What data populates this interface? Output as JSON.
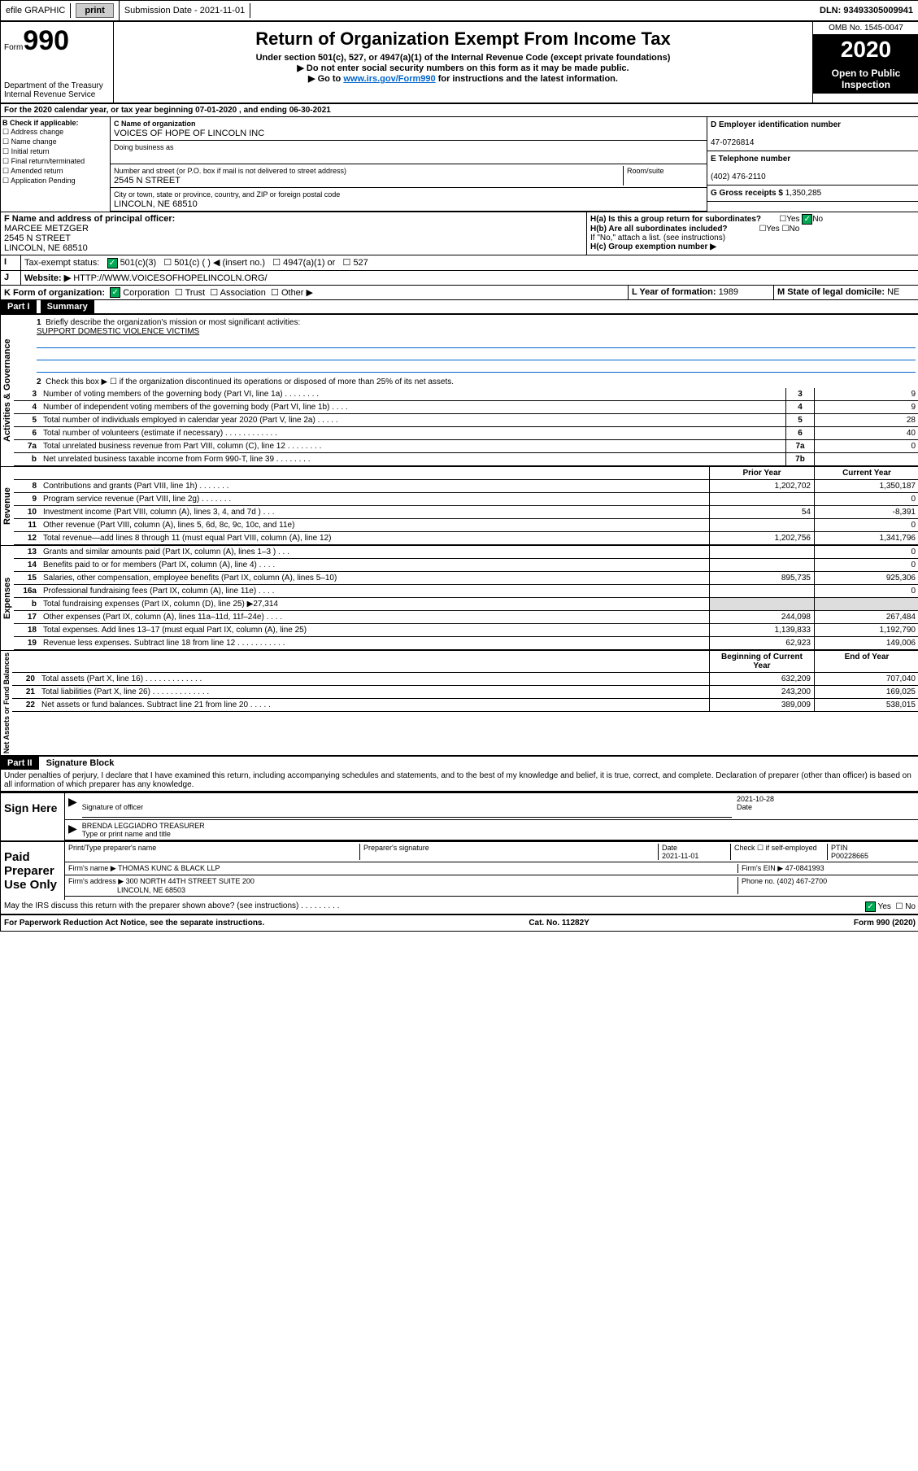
{
  "topbar": {
    "efile": "efile GRAPHIC",
    "print": "print",
    "subdate_label": "Submission Date - ",
    "subdate": "2021-11-01",
    "dln": "DLN: 93493305009941"
  },
  "header": {
    "form": "Form",
    "form_num": "990",
    "dept": "Department of the Treasury\nInternal Revenue Service",
    "title": "Return of Organization Exempt From Income Tax",
    "sub1": "Under section 501(c), 527, or 4947(a)(1) of the Internal Revenue Code (except private foundations)",
    "sub2": "▶ Do not enter social security numbers on this form as it may be made public.",
    "sub3a": "▶ Go to ",
    "sub3_link": "www.irs.gov/Form990",
    "sub3b": " for instructions and the latest information.",
    "omb": "OMB No. 1545-0047",
    "year": "2020",
    "open": "Open to Public Inspection"
  },
  "lineA": "For the 2020 calendar year, or tax year beginning 07-01-2020    , and ending 06-30-2021",
  "sectionB": {
    "label": "B Check if applicable:",
    "items": [
      "Address change",
      "Name change",
      "Initial return",
      "Final return/terminated",
      "Amended return",
      "Application Pending"
    ],
    "c_label": "C Name of organization",
    "org_name": "VOICES OF HOPE OF LINCOLN INC",
    "dba_label": "Doing business as",
    "street_label": "Number and street (or P.O. box if mail is not delivered to street address)",
    "room_label": "Room/suite",
    "street": "2545 N STREET",
    "city_label": "City or town, state or province, country, and ZIP or foreign postal code",
    "city": "LINCOLN, NE  68510",
    "d_label": "D Employer identification number",
    "ein": "47-0726814",
    "e_label": "E Telephone number",
    "phone": "(402) 476-2110",
    "g_label": "G Gross receipts $ ",
    "gross": "1,350,285"
  },
  "sectionF": {
    "f_label": "F Name and address of principal officer:",
    "officer": "MARCEE METZGER",
    "addr1": "2545 N STREET",
    "addr2": "LINCOLN, NE   68510",
    "ha_label": "H(a)  Is this a group return for subordinates?",
    "hb_label": "H(b)  Are all subordinates included?",
    "hb_note": "If \"No,\" attach a list. (see instructions)",
    "hc_label": "H(c)  Group exemption number ▶",
    "yes": "Yes",
    "no": "No"
  },
  "sectionI": {
    "i_label": "Tax-exempt status:",
    "opts": [
      "501(c)(3)",
      "501(c) (   ) ◀ (insert no.)",
      "4947(a)(1) or",
      "527"
    ]
  },
  "sectionJ": {
    "label": "Website: ▶",
    "url": "  HTTP://WWW.VOICESOFHOPELINCOLN.ORG/"
  },
  "sectionK": {
    "label": "K Form of organization:",
    "opts": [
      "Corporation",
      "Trust",
      "Association",
      "Other ▶"
    ],
    "l_label": "L Year of formation: ",
    "l_val": "1989",
    "m_label": "M State of legal domicile: ",
    "m_val": "NE"
  },
  "part1": {
    "hdr": "Part I",
    "title": "Summary",
    "line1": "Briefly describe the organization's mission or most significant activities:",
    "mission": "SUPPORT DOMESTIC VIOLENCE VICTIMS",
    "line2": "Check this box ▶ ☐  if the organization discontinued its operations or disposed of more than 25% of its net assets.",
    "governance_label": "Activities & Governance",
    "revenue_label": "Revenue",
    "expenses_label": "Expenses",
    "netassets_label": "Net Assets or Fund Balances",
    "prior_year": "Prior Year",
    "current_year": "Current Year",
    "begin_year": "Beginning of Current Year",
    "end_year": "End of Year",
    "lines_gov": [
      {
        "n": "3",
        "d": "Number of voting members of the governing body (Part VI, line 1a)   .    .    .    .    .    .    .    .",
        "box": "3",
        "v": "9"
      },
      {
        "n": "4",
        "d": "Number of independent voting members of the governing body (Part VI, line 1b)    .    .    .    .",
        "box": "4",
        "v": "9"
      },
      {
        "n": "5",
        "d": "Total number of individuals employed in calendar year 2020 (Part V, line 2a)   .    .    .    .    .",
        "box": "5",
        "v": "28"
      },
      {
        "n": "6",
        "d": "Total number of volunteers (estimate if necessary)    .    .    .    .    .    .    .    .    .    .    .    .",
        "box": "6",
        "v": "40"
      },
      {
        "n": "7a",
        "d": "Total unrelated business revenue from Part VIII, column (C), line 12   .    .    .    .    .    .    .    .",
        "box": "7a",
        "v": "0"
      },
      {
        "n": "b",
        "d": "Net unrelated business taxable income from Form 990-T, line 39    .    .    .    .    .    .    .    .",
        "box": "7b",
        "v": ""
      }
    ],
    "lines_rev": [
      {
        "n": "8",
        "d": "Contributions and grants (Part VIII, line 1h)    .    .    .    .    .    .    .",
        "p": "1,202,702",
        "c": "1,350,187"
      },
      {
        "n": "9",
        "d": "Program service revenue (Part VIII, line 2g)    .    .    .    .    .    .    .",
        "p": "",
        "c": "0"
      },
      {
        "n": "10",
        "d": "Investment income (Part VIII, column (A), lines 3, 4, and 7d )   .    .    .",
        "p": "54",
        "c": "-8,391"
      },
      {
        "n": "11",
        "d": "Other revenue (Part VIII, column (A), lines 5, 6d, 8c, 9c, 10c, and 11e)",
        "p": "",
        "c": "0"
      },
      {
        "n": "12",
        "d": "Total revenue—add lines 8 through 11 (must equal Part VIII, column (A), line 12)",
        "p": "1,202,756",
        "c": "1,341,796"
      }
    ],
    "lines_exp": [
      {
        "n": "13",
        "d": "Grants and similar amounts paid (Part IX, column (A), lines 1–3 )    .    .    .",
        "p": "",
        "c": "0"
      },
      {
        "n": "14",
        "d": "Benefits paid to or for members (Part IX, column (A), line 4)    .    .    .    .",
        "p": "",
        "c": "0"
      },
      {
        "n": "15",
        "d": "Salaries, other compensation, employee benefits (Part IX, column (A), lines 5–10)",
        "p": "895,735",
        "c": "925,306"
      },
      {
        "n": "16a",
        "d": "Professional fundraising fees (Part IX, column (A), line 11e)    .    .    .    .",
        "p": "",
        "c": "0"
      },
      {
        "n": "b",
        "d": "Total fundraising expenses (Part IX, column (D), line 25) ▶27,314",
        "p": "GRAY",
        "c": "GRAY"
      },
      {
        "n": "17",
        "d": "Other expenses (Part IX, column (A), lines 11a–11d, 11f–24e)   .    .    .    .",
        "p": "244,098",
        "c": "267,484"
      },
      {
        "n": "18",
        "d": "Total expenses. Add lines 13–17 (must equal Part IX, column (A), line 25)",
        "p": "1,139,833",
        "c": "1,192,790"
      },
      {
        "n": "19",
        "d": "Revenue less expenses. Subtract line 18 from line 12   .    .    .    .    .    .    .    .    .    .    .",
        "p": "62,923",
        "c": "149,006"
      }
    ],
    "lines_net": [
      {
        "n": "20",
        "d": "Total assets (Part X, line 16)    .    .    .    .    .    .    .    .    .    .    .    .    .",
        "p": "632,209",
        "c": "707,040"
      },
      {
        "n": "21",
        "d": "Total liabilities (Part X, line 26)    .    .    .    .    .    .    .    .    .    .    .    .    .",
        "p": "243,200",
        "c": "169,025"
      },
      {
        "n": "22",
        "d": "Net assets or fund balances. Subtract line 21 from line 20   .    .    .    .    .",
        "p": "389,009",
        "c": "538,015"
      }
    ]
  },
  "part2": {
    "hdr": "Part II",
    "title": "Signature Block",
    "perjury": "Under penalties of perjury, I declare that I have examined this return, including accompanying schedules and statements, and to the best of my knowledge and belief, it is true, correct, and complete. Declaration of preparer (other than officer) is based on all information of which preparer has any knowledge.",
    "sign_here": "Sign Here",
    "sig_officer": "Signature of officer",
    "sig_date_label": "Date",
    "sig_date": "2021-10-28",
    "officer_name": "BRENDA LEGGIADRO  TREASURER",
    "type_name": "Type or print name and title",
    "paid": "Paid Preparer Use Only",
    "prep_name_label": "Print/Type preparer's name",
    "prep_sig_label": "Preparer's signature",
    "date_label": "Date",
    "prep_date": "2021-11-01",
    "check_self": "Check ☐  if self-employed",
    "ptin_label": "PTIN",
    "ptin": "P00228665",
    "firm_name_label": "Firm's name    ▶ ",
    "firm_name": "THOMAS KUNC & BLACK LLP",
    "firm_ein_label": "Firm's EIN ▶ ",
    "firm_ein": "47-0841993",
    "firm_addr_label": "Firm's address ▶ ",
    "firm_addr1": "300 NORTH 44TH STREET SUITE 200",
    "firm_addr2": "LINCOLN, NE   68503",
    "phone_label": "Phone no. ",
    "firm_phone": "(402) 467-2700",
    "discuss": "May the IRS discuss this return with the preparer shown above? (see instructions)     .     .     .     .     .     .     .     .     .",
    "yes": "Yes",
    "no": "No"
  },
  "footer": {
    "paperwork": "For Paperwork Reduction Act Notice, see the separate instructions.",
    "cat": "Cat. No. 11282Y",
    "form": "Form 990 (2020)"
  }
}
